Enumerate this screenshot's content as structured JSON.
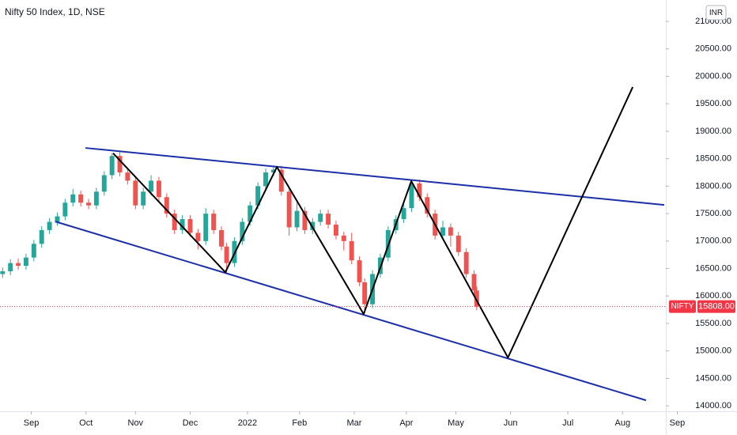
{
  "chart_data": {
    "type": "candlestick",
    "title": "Nifty 50 Index, 1D, NSE",
    "currency": "INR",
    "up_color": "#26a69a",
    "down_color": "#ef5350",
    "xlim": [
      -1,
      254
    ],
    "ylim": [
      13930,
      21390
    ],
    "xticks": [
      {
        "value": 11,
        "label": "Sep"
      },
      {
        "value": 32,
        "label": "Oct"
      },
      {
        "value": 51,
        "label": "Nov"
      },
      {
        "value": 72,
        "label": "Dec"
      },
      {
        "value": 94,
        "label": "2022"
      },
      {
        "value": 114,
        "label": "Feb"
      },
      {
        "value": 135,
        "label": "Mar"
      },
      {
        "value": 155,
        "label": "Apr"
      },
      {
        "value": 174,
        "label": "May"
      },
      {
        "value": 195,
        "label": "Jun"
      },
      {
        "value": 217,
        "label": "Jul"
      },
      {
        "value": 238,
        "label": "Aug"
      },
      {
        "value": 259,
        "label": "Sep"
      }
    ],
    "yticks": [
      {
        "value": 14000,
        "label": "14000.00"
      },
      {
        "value": 14500,
        "label": "14500.00"
      },
      {
        "value": 15000,
        "label": "15000.00"
      },
      {
        "value": 15500,
        "label": "15500.00"
      },
      {
        "value": 16000,
        "label": "16000.00"
      },
      {
        "value": 16500,
        "label": "16500.00"
      },
      {
        "value": 17000,
        "label": "17000.00"
      },
      {
        "value": 17500,
        "label": "17500.00"
      },
      {
        "value": 18000,
        "label": "18000.00"
      },
      {
        "value": 18500,
        "label": "18500.00"
      },
      {
        "value": 19000,
        "label": "19000.00"
      },
      {
        "value": 19500,
        "label": "19500.00"
      },
      {
        "value": 20000,
        "label": "20000.00"
      },
      {
        "value": 20500,
        "label": "20500.00"
      },
      {
        "value": 21000,
        "label": "21000.00"
      }
    ],
    "x": [
      0,
      3,
      6,
      9,
      12,
      15,
      18,
      21,
      24,
      27,
      30,
      33,
      36,
      39,
      42,
      45,
      48,
      51,
      54,
      57,
      60,
      63,
      66,
      69,
      72,
      75,
      78,
      81,
      84,
      86,
      89,
      92,
      95,
      98,
      101,
      104,
      107,
      110,
      113,
      116,
      119,
      122,
      125,
      128,
      131,
      134,
      137,
      139,
      142,
      145,
      148,
      151,
      154,
      157,
      160,
      163,
      166,
      169,
      172,
      175,
      178,
      181,
      182
    ],
    "open": [
      16400,
      16450,
      16600,
      16550,
      16700,
      16950,
      17200,
      17350,
      17450,
      17700,
      17850,
      17700,
      17650,
      17900,
      18200,
      18550,
      18250,
      18100,
      17650,
      17900,
      18100,
      17800,
      17500,
      17200,
      17400,
      17150,
      17000,
      17500,
      17200,
      16900,
      16600,
      17000,
      17350,
      17650,
      18000,
      18250,
      18300,
      17900,
      17250,
      17550,
      17200,
      17350,
      17500,
      17300,
      17100,
      17000,
      16650,
      16250,
      15850,
      16400,
      16700,
      17200,
      17400,
      17600,
      18050,
      17800,
      17500,
      17100,
      17250,
      17100,
      16800,
      16400,
      16100
    ],
    "high": [
      16520,
      16670,
      16680,
      16770,
      17020,
      17270,
      17420,
      17520,
      17770,
      17950,
      17920,
      17770,
      17970,
      18270,
      18600,
      18620,
      18320,
      18170,
      17970,
      18200,
      18170,
      17870,
      17570,
      17470,
      17470,
      17220,
      17600,
      17570,
      17270,
      16970,
      17070,
      17420,
      17720,
      18070,
      18320,
      18350,
      18370,
      17970,
      17700,
      17620,
      17420,
      17570,
      17570,
      17370,
      17170,
      17150,
      16720,
      16320,
      16470,
      16770,
      17270,
      17470,
      17670,
      18100,
      18120,
      17870,
      17570,
      17370,
      17320,
      17170,
      16870,
      16470,
      16170
    ],
    "low": [
      16330,
      16380,
      16480,
      16480,
      16630,
      16880,
      17130,
      17280,
      17380,
      17630,
      17630,
      17580,
      17580,
      17830,
      18130,
      18180,
      18030,
      17580,
      17580,
      17830,
      17730,
      17430,
      17130,
      17130,
      17080,
      16850,
      16930,
      17130,
      16830,
      16420,
      16530,
      16930,
      17280,
      17580,
      17930,
      18180,
      17830,
      17100,
      17180,
      17130,
      17130,
      17280,
      17230,
      17030,
      16830,
      16580,
      16180,
      15700,
      15780,
      16330,
      16630,
      17130,
      17330,
      17530,
      17730,
      17430,
      17030,
      17030,
      16900,
      16730,
      16330,
      16030,
      15740
    ],
    "close": [
      16450,
      16600,
      16550,
      16700,
      16950,
      17200,
      17350,
      17450,
      17700,
      17850,
      17700,
      17650,
      17900,
      18200,
      18550,
      18250,
      18100,
      17650,
      17900,
      18100,
      17800,
      17500,
      17200,
      17400,
      17150,
      17000,
      17500,
      17200,
      16900,
      16600,
      17000,
      17350,
      17650,
      18000,
      18250,
      18300,
      17900,
      17250,
      17550,
      17200,
      17350,
      17500,
      17300,
      17100,
      17000,
      16650,
      16250,
      15850,
      16400,
      16700,
      17200,
      17400,
      17600,
      18050,
      17800,
      17500,
      17100,
      17250,
      17100,
      16800,
      16400,
      16100,
      15808
    ],
    "last_price": {
      "name": "NIFTY",
      "value": 15808,
      "label": "15808.00",
      "color": "#f23645"
    },
    "drawings": [
      {
        "color": "#1c2fa8",
        "x": [
          31.8,
          254
        ],
        "values": [
          18696,
          17659
        ]
      },
      {
        "color": "#1c2fa8",
        "x": [
          20.2,
          247
        ],
        "values": [
          17356,
          14101
        ]
      },
      {
        "color": "#000000",
        "x": [
          42.4,
          85.5,
          105.3,
          138.6,
          156.9,
          194,
          241.9
        ],
        "values": [
          18600,
          16434,
          18350,
          15671,
          18091,
          14879,
          19805
        ]
      }
    ]
  }
}
